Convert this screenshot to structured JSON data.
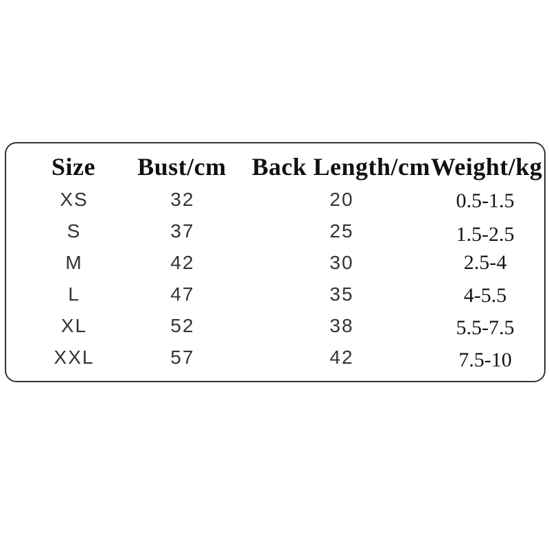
{
  "chart_data": {
    "type": "table",
    "title": "",
    "columns": [
      "Size",
      "Bust/cm",
      "Back Length/cm",
      "Weight/kg"
    ],
    "rows": [
      [
        "XS",
        "32",
        "20",
        "0.5-1.5"
      ],
      [
        "S",
        "37",
        "25",
        "1.5-2.5"
      ],
      [
        "M",
        "42",
        "30",
        "2.5-4"
      ],
      [
        "L",
        "47",
        "35",
        "4-5.5"
      ],
      [
        "XL",
        "52",
        "38",
        "5.5-7.5"
      ],
      [
        "XXL",
        "57",
        "42",
        "7.5-10"
      ]
    ]
  },
  "colors": {
    "background": "#ffffff",
    "border": "#333333",
    "header_text": "#111111",
    "value_text": "#333333",
    "weight_text": "#141414"
  }
}
